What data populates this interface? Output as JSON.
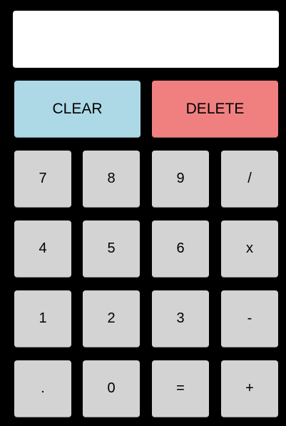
{
  "display": {
    "value": ""
  },
  "controls": {
    "clear_label": "CLEAR",
    "delete_label": "DELETE"
  },
  "keys": {
    "seven": "7",
    "eight": "8",
    "nine": "9",
    "divide": "/",
    "four": "4",
    "five": "5",
    "six": "6",
    "multiply": "x",
    "one": "1",
    "two": "2",
    "three": "3",
    "subtract": "-",
    "decimal": ".",
    "zero": "0",
    "equals": "=",
    "add": "+"
  },
  "colors": {
    "background": "#000000",
    "display_bg": "#ffffff",
    "clear_bg": "#add8e6",
    "delete_bg": "#f08080",
    "key_bg": "#d3d3d3"
  }
}
